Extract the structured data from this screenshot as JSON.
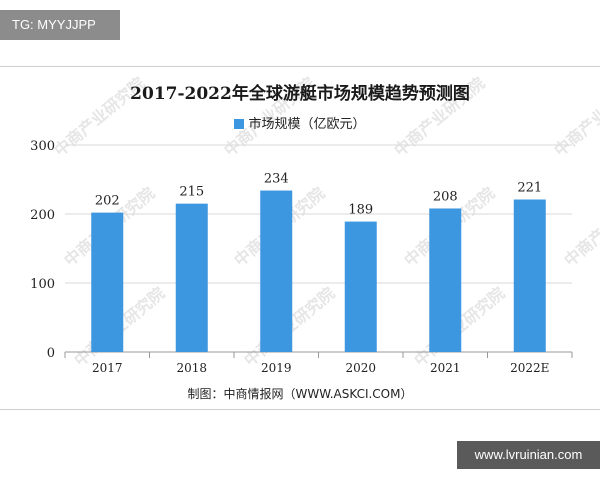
{
  "tg_badge": "TG: MYYJJPP",
  "site_badge": "www.lvruinian.com",
  "watermark_text": "中商产业研究院",
  "colors": {
    "bar": "#3d96e0",
    "grid": "#d9d9d9",
    "axis": "#9a9a9a"
  },
  "chart_data": {
    "type": "bar",
    "title": "2017-2022年全球游艇市场规模趋势预测图",
    "legend": "市场规模（亿欧元）",
    "legend_position": "top",
    "categories": [
      "2017",
      "2018",
      "2019",
      "2020",
      "2021",
      "2022E"
    ],
    "series": [
      {
        "name": "市场规模（亿欧元）",
        "values": [
          202,
          215,
          234,
          189,
          208,
          221
        ]
      }
    ],
    "ylim": [
      0,
      300
    ],
    "yticks": [
      0,
      100,
      200,
      300
    ],
    "grid": true,
    "source": "制图：中商情报网（WWW.ASKCI.COM）"
  }
}
